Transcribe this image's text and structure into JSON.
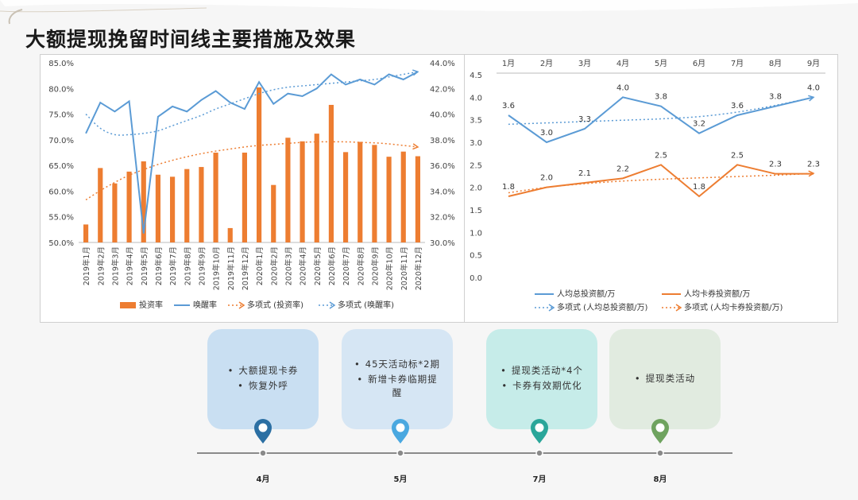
{
  "title": "大额提现挽留时间线主要措施及效果",
  "colors": {
    "bar": "#ed7d31",
    "line": "#5b9bd5",
    "trend_blue": "#5b9bd5",
    "trend_orange": "#ed7d31",
    "card1": "#c9dff2",
    "card2": "#d6e6f4",
    "card3": "#c6ece9",
    "card4": "#e1ebe0",
    "pin1": "#2b6fa3",
    "pin2": "#4aa8e0",
    "pin3": "#2aa69a",
    "pin4": "#6fa35f"
  },
  "chart_data": [
    {
      "type": "bar+line",
      "title": "",
      "categories": [
        "2019年1月",
        "2019年2月",
        "2019年3月",
        "2019年4月",
        "2019年5月",
        "2019年6月",
        "2019年7月",
        "2019年8月",
        "2019年9月",
        "2019年10月",
        "2019年11月",
        "2019年12月",
        "2020年1月",
        "2020年2月",
        "2020年3月",
        "2020年4月",
        "2020年5月",
        "2020年6月",
        "2020年7月",
        "2020年8月",
        "2020年9月",
        "2020年10月",
        "2020年11月",
        "2020年12月"
      ],
      "series": [
        {
          "name": "投资率",
          "type": "bar",
          "axis": "left",
          "values": [
            53.5,
            64.5,
            61.5,
            63.8,
            65.8,
            63.2,
            62.8,
            64.3,
            64.7,
            67.5,
            52.8,
            67.5,
            80.2,
            61.2,
            70.4,
            69.7,
            71.2,
            76.8,
            67.6,
            69.6,
            69.0,
            66.7,
            67.7,
            66.8
          ]
        },
        {
          "name": "唤醒率",
          "type": "line",
          "axis": "right",
          "values": [
            38.5,
            40.9,
            40.2,
            41.0,
            30.7,
            39.8,
            40.6,
            40.2,
            41.1,
            41.8,
            40.9,
            40.4,
            42.5,
            40.8,
            41.6,
            41.4,
            42.0,
            43.1,
            42.3,
            42.7,
            42.3,
            43.1,
            42.7,
            43.3
          ]
        },
        {
          "name": "多项式 (投资率)",
          "type": "trend",
          "axis": "left",
          "values": [
            58.3,
            60.1,
            61.7,
            63.1,
            64.2,
            65.2,
            66.0,
            66.7,
            67.3,
            67.8,
            68.2,
            68.6,
            68.9,
            69.1,
            69.3,
            69.5,
            69.6,
            69.6,
            69.6,
            69.5,
            69.4,
            69.2,
            68.9,
            68.6
          ]
        },
        {
          "name": "多项式 (唤醒率)",
          "type": "trend",
          "axis": "right",
          "values": [
            40.0,
            38.9,
            38.4,
            38.4,
            38.5,
            38.7,
            39.1,
            39.5,
            39.9,
            40.4,
            40.8,
            41.2,
            41.6,
            41.9,
            42.1,
            42.2,
            42.3,
            42.4,
            42.5,
            42.6,
            42.7,
            42.9,
            43.1,
            43.3
          ]
        }
      ],
      "left_axis": {
        "min": 50,
        "max": 85,
        "step": 5,
        "ticks": [
          "50.0%",
          "55.0%",
          "60.0%",
          "65.0%",
          "70.0%",
          "75.0%",
          "80.0%",
          "85.0%"
        ]
      },
      "right_axis": {
        "min": 30,
        "max": 44,
        "step": 2,
        "ticks": [
          "30.0%",
          "32.0%",
          "34.0%",
          "36.0%",
          "38.0%",
          "40.0%",
          "42.0%",
          "44.0%"
        ]
      },
      "legend": [
        "投资率",
        "唤醒率",
        "多项式 (投资率)",
        "多项式 (唤醒率)"
      ],
      "legend_position": "bottom"
    },
    {
      "type": "line",
      "title": "",
      "categories": [
        "1月",
        "2月",
        "3月",
        "4月",
        "5月",
        "6月",
        "7月",
        "8月",
        "9月"
      ],
      "series": [
        {
          "name": "人均总投资额/万",
          "values": [
            3.6,
            3.0,
            3.3,
            4.0,
            3.8,
            3.2,
            3.6,
            3.8,
            4.0
          ],
          "labels": [
            "3.6",
            "3.0",
            "3.3",
            "4.0",
            "3.8",
            "3.2",
            "3.6",
            "3.8",
            "4.0"
          ]
        },
        {
          "name": "人均卡券投资额/万",
          "values": [
            1.8,
            2.0,
            2.1,
            2.2,
            2.5,
            1.8,
            2.5,
            2.3,
            2.3
          ],
          "labels": [
            "1.8",
            "2.0",
            "2.1",
            "2.2",
            "2.5",
            "1.8",
            "2.5",
            "2.3",
            "2.3"
          ]
        },
        {
          "name": "多项式 (人均总投资额/万)",
          "type": "trend",
          "values": [
            3.4,
            3.43,
            3.46,
            3.49,
            3.52,
            3.57,
            3.67,
            3.82,
            4.0
          ]
        },
        {
          "name": "多项式 (人均卡券投资额/万)",
          "type": "trend",
          "values": [
            1.88,
            2.0,
            2.08,
            2.14,
            2.18,
            2.21,
            2.24,
            2.27,
            2.31
          ]
        }
      ],
      "y_axis": {
        "min": 0,
        "max": 4.5,
        "step": 0.5,
        "ticks": [
          "0.0",
          "0.5",
          "1.0",
          "1.5",
          "2.0",
          "2.5",
          "3.0",
          "3.5",
          "4.0",
          "4.5"
        ]
      },
      "legend": [
        "人均总投资额/万",
        "人均卡券投资额/万",
        "多项式 (人均总投资额/万)",
        "多项式 (人均卡券投资额/万)"
      ],
      "legend_position": "bottom"
    }
  ],
  "timeline": {
    "cards": [
      {
        "items": [
          "大额提现卡券",
          "恢复外呼"
        ]
      },
      {
        "items": [
          "45天活动标*2期",
          "新增卡券临期提醒"
        ]
      },
      {
        "items": [
          "提现类活动*4个",
          "卡券有效期优化"
        ]
      },
      {
        "items": [
          "提现类活动"
        ]
      }
    ],
    "months": [
      "4月",
      "5月",
      "7月",
      "8月"
    ]
  }
}
